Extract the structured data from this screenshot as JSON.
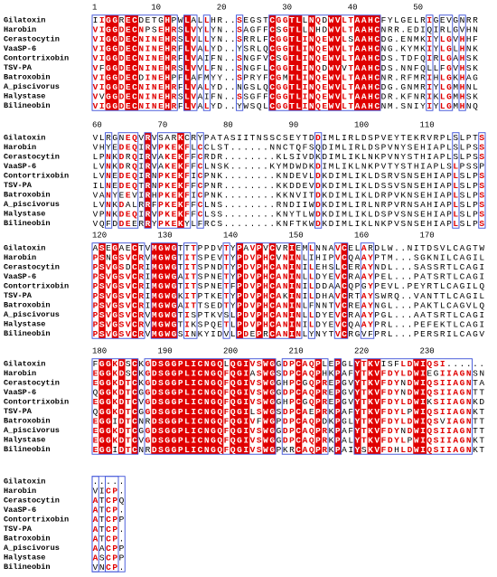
{
  "blocks": [
    {
      "ruler": [
        1,
        10,
        20,
        30,
        40,
        50
      ],
      "rows": [
        {
          "name": "Gilatoxin",
          "seq": "IIGGRECDETGHPWLALLHR..SEGSTCGGTLLNQDWVLTAAHCFYLGELRIGEVGNRR"
        },
        {
          "name": "Harobin",
          "seq": "VIGGDECNPSEHRSLVYLYN..SAGFFCSGTLLNHDWVLTAAHCNRR.EDIQIRLGVHN"
        },
        {
          "name": "Cerastocytin",
          "seq": "VIGGDECNINEHRSLVLLYN..SRRLFCGGTLINQEWVLSAAHCDG.ENMKIYLGVHHF"
        },
        {
          "name": "VaaSP-6",
          "seq": "VIGGDECNINEHRFLVALYD..YSRLQCGGTLINQEWVLTAAHCNG.KYMKIYLGLHNK"
        },
        {
          "name": "Contortrixobin",
          "seq": "VIGGDECNINEHRFLVAIFN..SNGFVCSGTLINQEWVLTAAHCDS.TDFQIRLGAHSK"
        },
        {
          "name": "TSV-PA",
          "seq": "VFGGDECNINEHRSLVVLFN..SNGFLCGGTLINQDWVVTAAHCDS.NNFQLLFGVHSK"
        },
        {
          "name": "Batroxobin",
          "seq": "VIGGDECDINEHPFLAFMYY..SPRYFCGMTLINQEWVLTAAHCNR.RFMRIHLGKHAG"
        },
        {
          "name": "A_piscivorus",
          "seq": "VIGGDECNINEHRFLVALYD..NGSLQCGGTLINQEWVLTAAHCDG.GNMRIYLGMHNL"
        },
        {
          "name": "Halystase",
          "seq": "VVGGDECNINEHRSLVAIFN..SSGFFCGGTLINQEWVLTAAHCDR.KFNRIKLGMHSK"
        },
        {
          "name": "Bilineobin",
          "seq": "VIGGDECNINEHRFLVALYD..YWSQLCGGTLINQEWVLTAAHCNM.SNIYIYLGMHNQ"
        }
      ]
    },
    {
      "ruler": [
        60,
        70,
        80,
        90,
        100,
        110
      ],
      "rows": [
        {
          "name": "Gilatoxin",
          "seq": "VLRGNEQVRVSARKCRYPATASIITNSSCSEYTDDIMLIRLDSPVEYTEKRVRPLSLPTS"
        },
        {
          "name": "Harobin",
          "seq": "VHYEDEQIRVPKEKFLCCLST......NNCTQFSQDIMLIRLDSPVNYSEHIAPLSLPSS"
        },
        {
          "name": "Cerastocytin",
          "seq": "LPNKDRQIRVAKEKFFCRDR........KLSIVDKDIMLIKLNKPVNYSTHIAPLSLPSS"
        },
        {
          "name": "VaaSP-6",
          "seq": "LVNKDRQIRVAKEKFFCLNSK......KYMDWDKDIMLIKLNKPVTYSTHIAPLSLPSSP"
        },
        {
          "name": "Contortrixobin",
          "seq": "LVNEDEQIRNPKEKFICPNK........KNDEVLDKDIMLIKLDSRVSNSEHIAPLSLPS"
        },
        {
          "name": "TSV-PA",
          "seq": "ILNEDEQTRNPKEKFFCPNR........KKDDEVDKDIMLIKLDSSVSNSEHIAPLSLPS"
        },
        {
          "name": "Batroxobin",
          "seq": "VANYEEVIRHPKEKFICPNK........KKNVITDKDIMLIKLDRPVKNSEHIAPLSLPS"
        },
        {
          "name": "A_piscivorus",
          "seq": "LVNKDALRRFPKEKFFCLNS........RNDIIWDKDIMLIRLNRPVRNSAHIAPLSLPS"
        },
        {
          "name": "Halystase",
          "seq": "VPNKDEQIRVPKEKFFCLSS........KNYTLWDKDIMLIKLDSPVSNSEHIAPLSLPS"
        },
        {
          "name": "Bilineobin",
          "seq": "VQFDDEERRYPKEKYLFRCS........KNFTKWDKDIMLIKLNKPVSNSEHIAPLSLPS"
        }
      ]
    },
    {
      "ruler": [
        120,
        130,
        140,
        150,
        160,
        170
      ],
      "rows": [
        {
          "name": "Gilatoxin",
          "seq": "ASEGAECTVMGWGTTTPPDVTYPAVPVCVRIEMLNNAVCELARDLW..NITDSVLCAGTW"
        },
        {
          "name": "Harobin",
          "seq": "PSNGSVCRVMGWGTITSPEVTYPDVPHCVNINLIHIPVCQAAYPTM...SGKNILCAGIL"
        },
        {
          "name": "Cerastocytin",
          "seq": "PSVGSDCRIMGWGTITSPNDTYPDVPHCANINILEHSLCERAYNDL...SASSRTLCAGI"
        },
        {
          "name": "VaaSP-6",
          "seq": "PSVGSVCRIMGWGAITSPNETYPDVPHCANINLLDYEVCRAAYPEL...PATSRTLCAGI"
        },
        {
          "name": "Contortrixobin",
          "seq": "PSVGSVCRIMGWGTITSPNETFPDVPHCANINILDDAACQPGYPEVL.PEYRTLCAGILQ"
        },
        {
          "name": "TSV-PA",
          "seq": "PSVGSVCRIMGWGKITPTKETYPDVPHCAKINILDHAVCRTAYSWRQ..VANTTLCAGIL"
        },
        {
          "name": "Batroxobin",
          "seq": "PSVGSVCRIMGWGAITTSEDTYPDVPHCANINLFNNTVCREAYNGL...PAKTLCAGVLQ"
        },
        {
          "name": "A_piscivorus",
          "seq": "PSVGSVCRVMGWGTISPTKVSLPDVPHCANINLLDYEVCRAAYPGL...AATSRTLCAGI"
        },
        {
          "name": "Halystase",
          "seq": "PSVGSVCRVMGWGTIKSPQETLPDVPHCANINILDYEVCQAAYPRL...PEFEKTLCAGI"
        },
        {
          "name": "Bilineobin",
          "seq": "PSVGSVCRVMGWGSINKYIDVLPDEPRCANINLYNYTVCRGVFPRL...PERSRILCAGV"
        }
      ]
    },
    {
      "ruler": [
        180,
        190,
        200,
        210,
        220,
        230
      ],
      "rows": [
        {
          "name": "Gilatoxin",
          "seq": "FGGKDSCKGDSGGPLICNGQLQGIVSWGGDPCAQPLEPGLYTKVISFLDWIQSI......"
        },
        {
          "name": "Harobin",
          "seq": "EGGKDSCKGDSGGPLICNGQFQGIASWGSDPCAQPHKPAFYTKVFDYLDWIEGIIAGNSN"
        },
        {
          "name": "Cerastocytin",
          "seq": "EGGKDTCKGDSGGPLICNGQFQGIVSWGGHPCGQPREPGVYTKVFDYNDWIQSIIAGNTA"
        },
        {
          "name": "VaaSP-6",
          "seq": "QGGKDTCGGDSGGPLICNGQFQGIVSWGGDPCAQPREPGVYTKVFDYNDWIQSIIAGNTT"
        },
        {
          "name": "Contortrixobin",
          "seq": "EGGKDTCVGDSGGPLICNGQFQGIVSWGGHPCGQPREPGVYTKVFDYLDWIKSIIAGNKD"
        },
        {
          "name": "TSV-PA",
          "seq": "QGGKDTCGGDSGGPLICNGQFQGILSWGSDPCAEPRKPAFYTKVFDYLPWIQSIIAGNKT"
        },
        {
          "name": "Batroxobin",
          "seq": "EGGIDTCNRDSGGPLICNGQFQGIVFWGPDPCAQPDKPGLYTKVFDYLDWIQSVIAGNTT"
        },
        {
          "name": "A_piscivorus",
          "seq": "EGGKDTCGGDSGGPLICNGQFQGIVSWGGDPCAQPRKPAFYTKVFDYNDWIQSIIAGNTT"
        },
        {
          "name": "Halystase",
          "seq": "EGGKDTCVGDSGGPLICNGQFQGIVSWGGDPCAQPRKPALYTKVFDYLPWIQSIIAGNKT"
        },
        {
          "name": "Bilineobin",
          "seq": "EGGIDTCNRDSGGPLICNGQFQGIVSWGPKRCAQPRKPAIYSKVFDHLDWIQSIIAGNKT"
        }
      ]
    },
    {
      "ruler": [],
      "rows": [
        {
          "name": "Gilatoxin",
          "seq": "....."
        },
        {
          "name": "Harobin",
          "seq": "VICP."
        },
        {
          "name": "Cerastocytin",
          "seq": "ATCPQ"
        },
        {
          "name": "VaaSP-6",
          "seq": "ATCP."
        },
        {
          "name": "Contortrixobin",
          "seq": "ATCPP"
        },
        {
          "name": "TSV-PA",
          "seq": "ATCP."
        },
        {
          "name": "Batroxobin",
          "seq": "ATCP."
        },
        {
          "name": "A_piscivorus",
          "seq": "AACPP"
        },
        {
          "name": "Halystase",
          "seq": "ASCPP"
        },
        {
          "name": "Bilineobin",
          "seq": "VNCP."
        }
      ]
    }
  ]
}
